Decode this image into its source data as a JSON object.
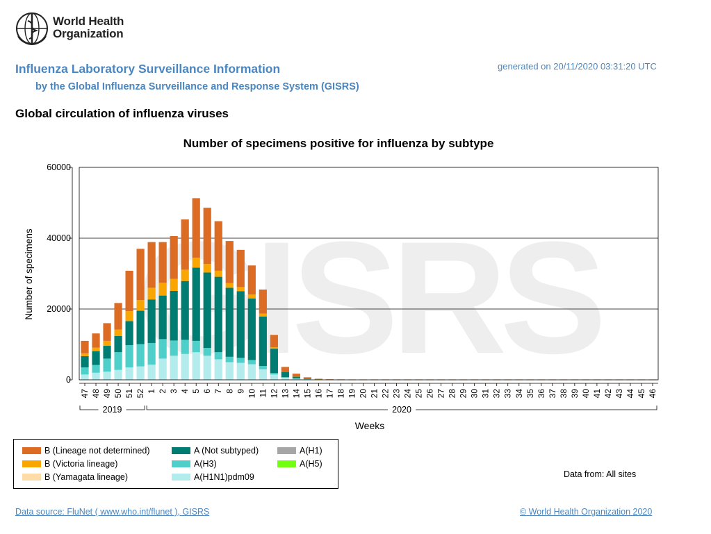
{
  "logo": {
    "line1": "World Health",
    "line2": "Organization"
  },
  "header": {
    "title": "Influenza Laboratory Surveillance Information",
    "subtitle": "by the Global Influenza Surveillance and Response System (GISRS)",
    "generated": "generated on 20/11/2020 03:31:20 UTC"
  },
  "section_title": "Global circulation of influenza viruses",
  "watermark": "GISRS",
  "colors": {
    "b_lineage_not_determined": "#dc6b23",
    "b_victoria": "#f9a602",
    "b_yamagata": "#fddca8",
    "a_not_subtyped": "#007d72",
    "a_h3": "#4ecfca",
    "a_h1n1pdm09": "#b3eced",
    "a_h1": "#a6a6a6",
    "a_h5": "#72ff12",
    "link": "#4a86c0",
    "watermark": "#eeeeee"
  },
  "chart_data": {
    "type": "bar",
    "stacked": true,
    "title": "Number of specimens positive for influenza by subtype",
    "xlabel": "Weeks",
    "ylabel": "Number of specimens",
    "ylim": [
      0,
      60000
    ],
    "yticks": [
      0,
      20000,
      40000,
      60000
    ],
    "grid": true,
    "categories": [
      "47",
      "48",
      "49",
      "50",
      "51",
      "52",
      "1",
      "2",
      "3",
      "4",
      "5",
      "6",
      "7",
      "8",
      "9",
      "10",
      "11",
      "12",
      "13",
      "14",
      "15",
      "16",
      "17",
      "18",
      "19",
      "20",
      "21",
      "22",
      "23",
      "24",
      "25",
      "26",
      "27",
      "28",
      "29",
      "30",
      "31",
      "32",
      "33",
      "34",
      "35",
      "36",
      "37",
      "38",
      "39",
      "40",
      "41",
      "42",
      "43",
      "44",
      "45",
      "46"
    ],
    "year_groups": [
      {
        "label": "2019",
        "from": "47",
        "to": "52"
      },
      {
        "label": "2020",
        "from": "1",
        "to": "46"
      }
    ],
    "series": [
      {
        "name": "A(H1N1)pdm09",
        "color_key": "a_h1n1pdm09",
        "values": [
          1500,
          2000,
          2300,
          2800,
          3500,
          3800,
          4300,
          6000,
          6800,
          7300,
          7800,
          6800,
          5800,
          5000,
          4800,
          4400,
          3000,
          1500,
          600,
          300,
          150,
          80,
          40,
          30,
          20,
          20,
          20,
          20,
          20,
          20,
          20,
          20,
          20,
          20,
          20,
          20,
          20,
          20,
          20,
          20,
          20,
          20,
          20,
          20,
          20,
          20,
          20,
          20,
          20,
          20,
          20,
          20
        ]
      },
      {
        "name": "A(H3)",
        "color_key": "a_h3",
        "values": [
          2000,
          2200,
          3700,
          5000,
          6300,
          6300,
          6100,
          5500,
          4300,
          4000,
          3200,
          2200,
          2000,
          1500,
          1400,
          1200,
          900,
          400,
          150,
          100,
          50,
          20,
          10,
          10,
          10,
          10,
          10,
          10,
          10,
          10,
          10,
          10,
          10,
          10,
          10,
          10,
          10,
          10,
          10,
          10,
          10,
          10,
          10,
          10,
          10,
          10,
          10,
          10,
          10,
          10,
          10,
          10
        ]
      },
      {
        "name": "A(Not subtyped)",
        "color_key": "a_not_subtyped",
        "values": [
          3200,
          3900,
          3600,
          4600,
          6800,
          9400,
          12300,
          12300,
          14000,
          16600,
          20700,
          21300,
          21300,
          19500,
          18800,
          17400,
          14000,
          6900,
          1500,
          500,
          200,
          50,
          20,
          20,
          20,
          20,
          20,
          20,
          20,
          20,
          20,
          20,
          20,
          20,
          20,
          20,
          20,
          20,
          20,
          20,
          20,
          20,
          20,
          20,
          20,
          20,
          20,
          20,
          20,
          20,
          20,
          20
        ]
      },
      {
        "name": "A(H1)",
        "color_key": "a_h1",
        "values": [
          0,
          0,
          0,
          0,
          0,
          0,
          0,
          0,
          0,
          0,
          0,
          0,
          0,
          0,
          0,
          0,
          0,
          0,
          0,
          0,
          0,
          0,
          0,
          0,
          0,
          0,
          0,
          0,
          0,
          0,
          0,
          0,
          0,
          0,
          0,
          0,
          0,
          0,
          0,
          0,
          0,
          0,
          0,
          0,
          0,
          0,
          0,
          0,
          0,
          0,
          0,
          0
        ]
      },
      {
        "name": "A(H5)",
        "color_key": "a_h5",
        "values": [
          0,
          0,
          0,
          0,
          0,
          0,
          0,
          0,
          0,
          0,
          0,
          0,
          0,
          0,
          0,
          0,
          0,
          0,
          0,
          0,
          0,
          0,
          0,
          0,
          0,
          0,
          0,
          0,
          0,
          0,
          0,
          0,
          0,
          0,
          0,
          0,
          0,
          0,
          0,
          0,
          0,
          0,
          0,
          0,
          0,
          0,
          0,
          0,
          0,
          0,
          0,
          0
        ]
      },
      {
        "name": "B (Yamagata lineage)",
        "color_key": "b_yamagata",
        "values": [
          0,
          0,
          0,
          0,
          0,
          0,
          0,
          0,
          0,
          0,
          0,
          0,
          0,
          0,
          0,
          0,
          0,
          0,
          0,
          0,
          0,
          0,
          0,
          0,
          0,
          0,
          0,
          0,
          0,
          0,
          0,
          0,
          0,
          0,
          0,
          0,
          0,
          0,
          0,
          0,
          0,
          0,
          0,
          0,
          0,
          0,
          0,
          0,
          0,
          0,
          0,
          0
        ]
      },
      {
        "name": "B (Victoria lineage)",
        "color_key": "b_victoria",
        "values": [
          800,
          1000,
          1400,
          1800,
          2800,
          3000,
          3300,
          3600,
          3400,
          3200,
          2800,
          2400,
          1700,
          1300,
          1200,
          1100,
          800,
          400,
          100,
          50,
          20,
          10,
          0,
          0,
          0,
          0,
          0,
          0,
          0,
          0,
          0,
          0,
          0,
          0,
          0,
          0,
          0,
          0,
          0,
          0,
          0,
          0,
          0,
          0,
          0,
          0,
          0,
          0,
          0,
          0,
          0,
          0
        ]
      },
      {
        "name": "B (Lineage not determined)",
        "color_key": "b_lineage_not_determined",
        "values": [
          3500,
          4000,
          5000,
          7500,
          11400,
          14500,
          12900,
          11500,
          12100,
          14200,
          16800,
          15900,
          14000,
          11900,
          10500,
          8200,
          6800,
          3500,
          1300,
          800,
          300,
          150,
          90,
          70,
          60,
          60,
          60,
          60,
          60,
          60,
          60,
          60,
          60,
          60,
          60,
          60,
          60,
          60,
          60,
          60,
          60,
          60,
          60,
          60,
          60,
          60,
          60,
          60,
          60,
          60,
          60,
          60
        ]
      }
    ]
  },
  "legend": {
    "items": [
      {
        "label": "B (Lineage not determined)",
        "color_key": "b_lineage_not_determined"
      },
      {
        "label": "B (Victoria lineage)",
        "color_key": "b_victoria"
      },
      {
        "label": "B (Yamagata lineage)",
        "color_key": "b_yamagata"
      },
      {
        "label": "A (Not subtyped)",
        "color_key": "a_not_subtyped"
      },
      {
        "label": "A(H3)",
        "color_key": "a_h3"
      },
      {
        "label": "A(H1N1)pdm09",
        "color_key": "a_h1n1pdm09"
      },
      {
        "label": "A(H1)",
        "color_key": "a_h1"
      },
      {
        "label": "A(H5)",
        "color_key": "a_h5"
      }
    ]
  },
  "data_from": "Data from: All sites",
  "footer": {
    "source": "Data source: FluNet ( www.who.int/flunet ), GISRS",
    "copyright": "© World Health Organization 2020"
  }
}
